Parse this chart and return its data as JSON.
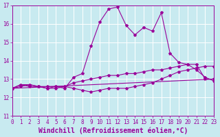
{
  "background_color": "#c8eaf0",
  "grid_color": "#ffffff",
  "line_color": "#990099",
  "x_min": 0,
  "x_max": 23,
  "y_min": 11,
  "y_max": 17,
  "xlabel": "Windchill (Refroidissement éolien,°C)",
  "xlabel_fontsize": 7.0,
  "tick_fontsize": 5.5,
  "series1_x": [
    0,
    1,
    2,
    3,
    4,
    5,
    6,
    7,
    8,
    9,
    10,
    11,
    12,
    13,
    14,
    15,
    16,
    17,
    18,
    19,
    20,
    21,
    22,
    23
  ],
  "series1_y": [
    12.5,
    12.7,
    12.7,
    12.6,
    12.5,
    12.6,
    12.5,
    13.1,
    13.3,
    14.8,
    16.1,
    16.8,
    16.9,
    15.9,
    15.4,
    15.8,
    15.6,
    16.6,
    14.4,
    13.9,
    13.8,
    13.8,
    13.0,
    13.0
  ],
  "series2_x": [
    0,
    1,
    2,
    3,
    4,
    5,
    6,
    7,
    8,
    9,
    10,
    11,
    12,
    13,
    14,
    15,
    16,
    17,
    18,
    19,
    20,
    21,
    22,
    23
  ],
  "series2_y": [
    12.5,
    12.6,
    12.7,
    12.6,
    12.6,
    12.6,
    12.6,
    12.8,
    12.9,
    13.0,
    13.1,
    13.2,
    13.2,
    13.3,
    13.3,
    13.4,
    13.5,
    13.5,
    13.6,
    13.7,
    13.8,
    13.5,
    13.1,
    12.9
  ],
  "series3_x": [
    0,
    23
  ],
  "series3_y": [
    12.5,
    13.0
  ],
  "series4_x": [
    0,
    1,
    2,
    3,
    4,
    5,
    6,
    7,
    8,
    9,
    10,
    11,
    12,
    13,
    14,
    15,
    16,
    17,
    18,
    19,
    20,
    21,
    22,
    23
  ],
  "series4_y": [
    12.5,
    12.7,
    12.6,
    12.6,
    12.5,
    12.5,
    12.6,
    12.5,
    12.4,
    12.3,
    12.4,
    12.5,
    12.5,
    12.5,
    12.6,
    12.7,
    12.8,
    13.0,
    13.2,
    13.4,
    13.5,
    13.6,
    13.7,
    13.7
  ]
}
